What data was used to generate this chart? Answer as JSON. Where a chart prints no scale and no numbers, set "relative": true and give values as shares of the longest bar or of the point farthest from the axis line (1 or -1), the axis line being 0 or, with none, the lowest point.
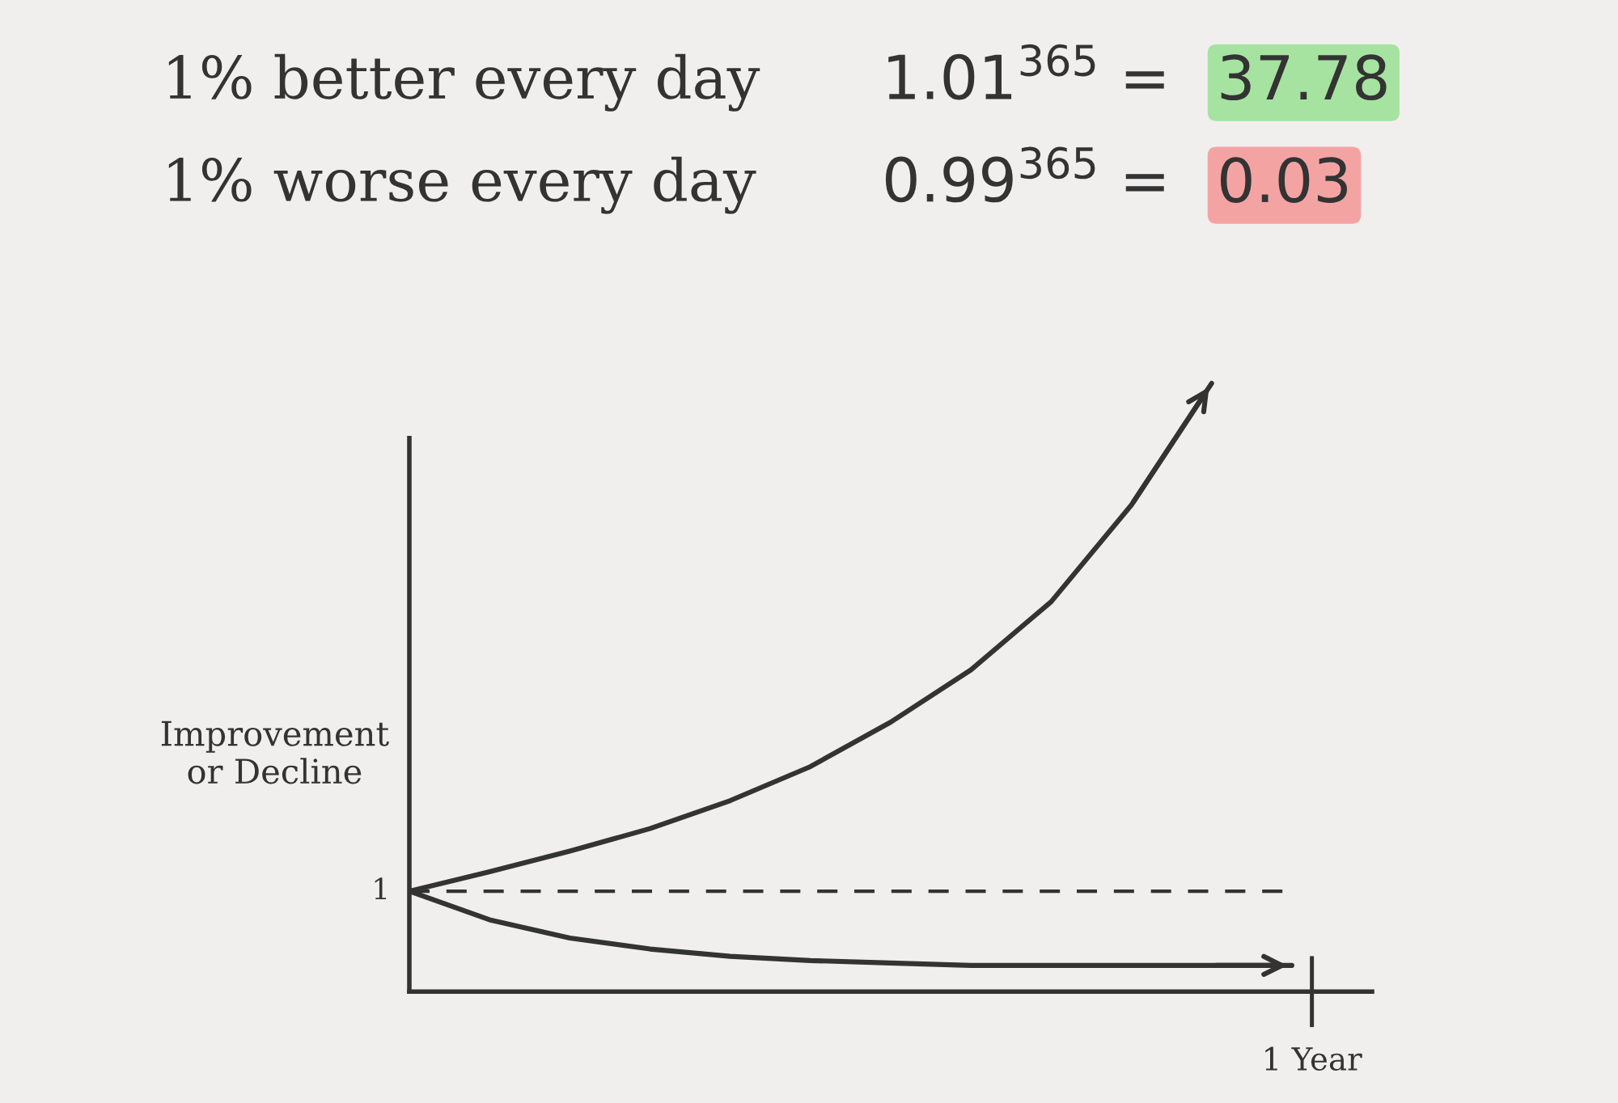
{
  "chart_data": {
    "type": "line",
    "relative": true,
    "ylabel": "Improvement\nor Decline",
    "annotations": [
      "1% better every day",
      "1.01$^{365}$ =",
      "37.78",
      "1% worse every day",
      "0.99$^{365}$ =",
      "0.03",
      "1",
      "1 Year"
    ],
    "categories": [
      null,
      null,
      null,
      null,
      null,
      null,
      null,
      null,
      null,
      null,
      null,
      null
    ],
    "series": [
      {
        "color": "#333333",
        "values": [
          0.165,
          0.197,
          0.231,
          0.268,
          0.314,
          0.37,
          0.443,
          0.529,
          0.641,
          0.8,
          1,
          null
        ]
      },
      {
        "color": "#333333",
        "values": [
          0.165,
          0.118,
          0.088,
          0.07,
          0.058,
          0.051,
          0.047,
          0.043,
          0.043,
          0.043,
          0.043,
          0.043
        ]
      }
    ],
    "ref_lines": [
      {
        "axis": "y",
        "value": 0.165,
        "color": "#333333",
        "line_style": "dashed"
      }
    ],
    "marker": "none",
    "line_style": "solid"
  }
}
